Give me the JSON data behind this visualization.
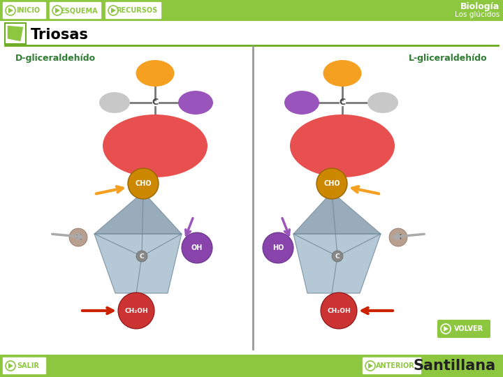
{
  "bg_color": "#ffffff",
  "header_color": "#8dc63f",
  "footer_color": "#8dc63f",
  "header_text_title": "Biología",
  "header_text_subtitle": "Los glúcidos",
  "header_buttons": [
    "INICIO",
    "ESQUEMA",
    "RECURSOS"
  ],
  "section_title": "Triosas",
  "section_line_color": "#6aaa1e",
  "divider_color": "#888888",
  "label_left": "D-gliceraldehído",
  "label_right": "L-gliceraldehído",
  "label_color": "#2e7d32",
  "orange_color": "#f5a020",
  "purple_color": "#9955bb",
  "gray_color": "#c8c8c8",
  "red_molecule_color": "#e85050",
  "arrow_orange": "#f5a020",
  "arrow_purple": "#9955bb",
  "arrow_red": "#cc2200",
  "arrow_gray": "#aaaaaa",
  "tetra_color": "#a8bfcf",
  "tetra_dark": "#8098aa",
  "tetra_edge": "#708898",
  "cho_color": "#cc8800",
  "oh_color": "#8844aa",
  "h_color": "#b8a090",
  "ch2oh_color": "#cc3333",
  "c_color": "#888888",
  "button_salir": "SALIR",
  "button_anterior": "ANTERIOR",
  "button_volver": "VOLVER",
  "santillana_text": "Santillana",
  "santillana_color": "#222222"
}
